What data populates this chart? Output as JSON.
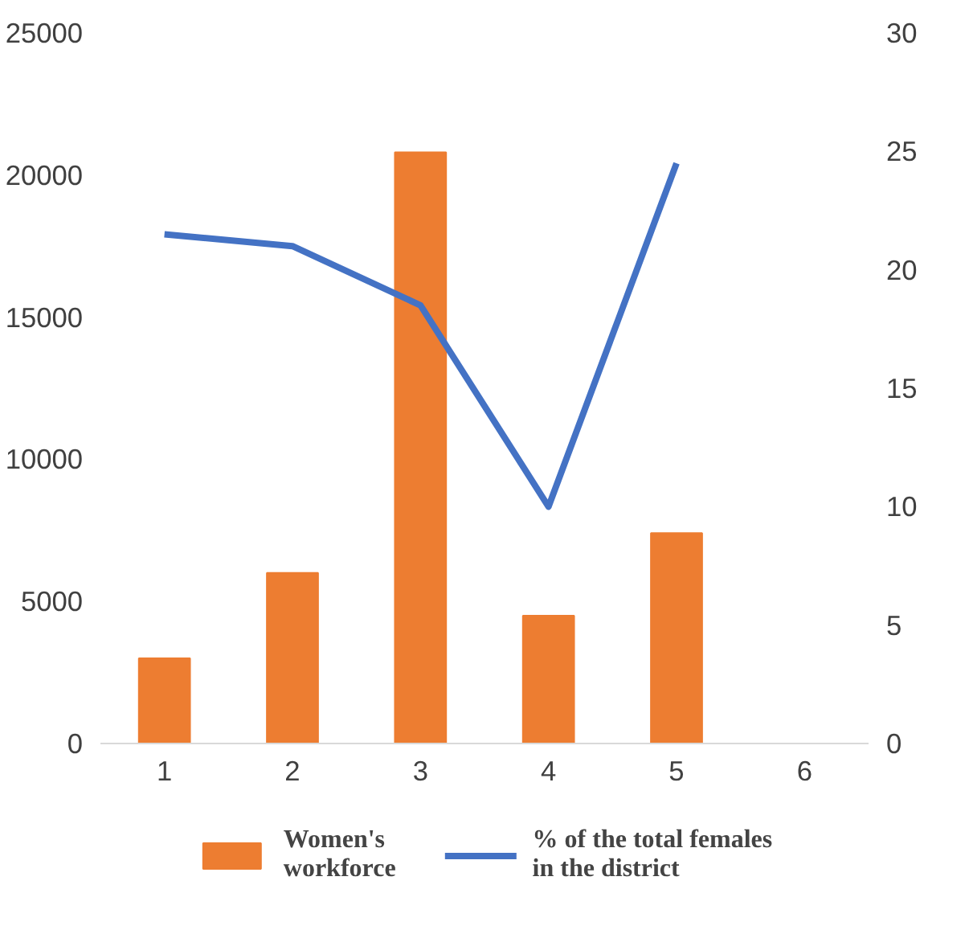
{
  "chart_data": {
    "type": "bar",
    "categories": [
      "1",
      "2",
      "3",
      "4",
      "5",
      "6"
    ],
    "series": [
      {
        "name": "Women's workforce",
        "color": "#ed7d31",
        "values": [
          3000,
          6000,
          20800,
          4500,
          7400,
          null
        ]
      },
      {
        "name": "% of the total females in the district",
        "type": "line",
        "axis": "y2",
        "color": "#4472c4",
        "values": [
          21.5,
          21,
          18.5,
          10,
          24.5,
          null
        ]
      }
    ],
    "ylim": [
      0,
      25000
    ],
    "yticks": [
      0,
      5000,
      10000,
      15000,
      20000,
      25000
    ],
    "y2lim": [
      0,
      30
    ],
    "y2ticks": [
      0,
      5,
      10,
      15,
      20,
      25,
      30
    ],
    "grid": false,
    "legend": "bottom",
    "marker": "none",
    "line_style": "solid"
  }
}
